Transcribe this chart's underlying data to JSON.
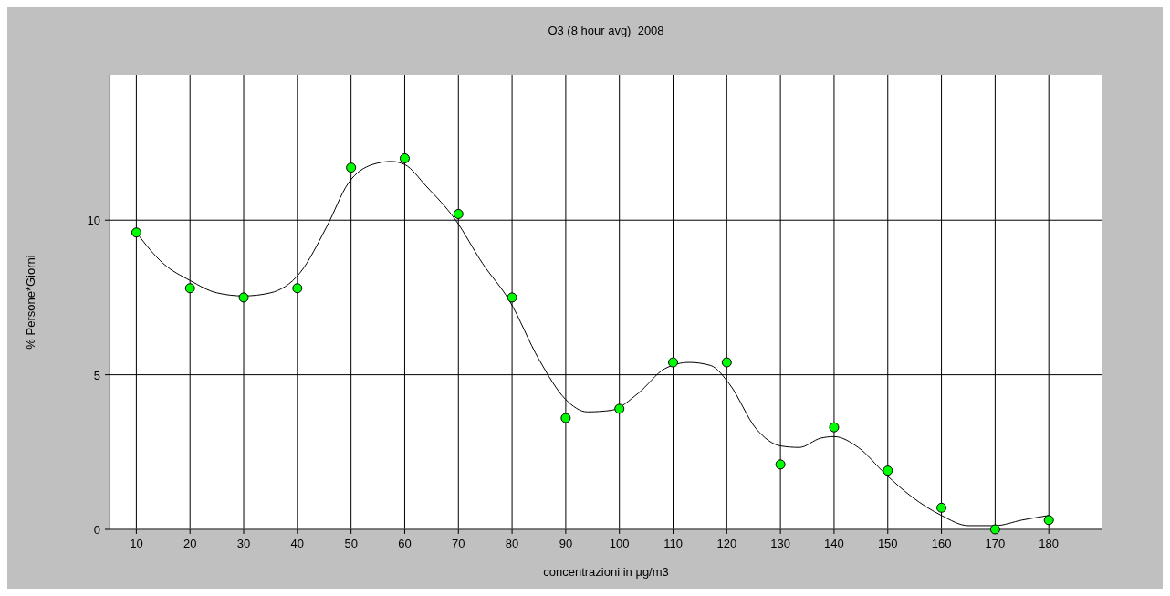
{
  "chart_data": {
    "type": "scatter",
    "title": "O3 (8 hour avg)  2008",
    "xlabel": "concentrazioni in µg/m3",
    "ylabel": "% Persone*Giorni",
    "xlim": [
      5,
      190
    ],
    "xticks": [
      10,
      20,
      30,
      40,
      50,
      60,
      70,
      80,
      90,
      100,
      110,
      120,
      130,
      140,
      150,
      160,
      170,
      180
    ],
    "ylim": [
      0,
      14.7
    ],
    "yticks": [
      0,
      5,
      10
    ],
    "grid": true,
    "marker": "circle",
    "series": [
      {
        "color": "#00ff00",
        "x": [
          10,
          20,
          30,
          40,
          50,
          60,
          70,
          80,
          90,
          100,
          110,
          120,
          130,
          140,
          150,
          160,
          170,
          180
        ],
        "values": [
          9.6,
          7.8,
          7.5,
          7.8,
          11.7,
          12.0,
          10.2,
          7.5,
          3.6,
          3.9,
          5.4,
          5.4,
          2.1,
          3.3,
          1.9,
          0.7,
          0.0,
          0.3
        ]
      },
      {
        "type": "line",
        "color": "#000000",
        "marker": "none",
        "x": [
          10,
          15,
          20,
          25,
          30,
          35,
          40.5,
          45.5,
          49.5,
          54,
          57.5,
          60,
          64,
          69.5,
          74.5,
          79.5,
          85,
          90,
          94,
          98.5,
          103.5,
          108.5,
          113,
          117,
          120.5,
          125.5,
          130,
          133.5,
          137.5,
          140,
          144.5,
          149.5,
          154.5,
          160,
          165,
          170,
          175,
          180
        ],
        "values": [
          9.6,
          8.6,
          8.05,
          7.65,
          7.55,
          7.65,
          8.3,
          9.8,
          11.2,
          11.8,
          11.9,
          11.8,
          11.1,
          10,
          8.6,
          7.4,
          5.5,
          4.2,
          3.8,
          3.85,
          4.4,
          5.2,
          5.4,
          5.3,
          4.7,
          3.25,
          2.7,
          2.65,
          2.95,
          3.0,
          2.65,
          1.8,
          1.05,
          0.45,
          0.12,
          0.12,
          0.3,
          0.45
        ]
      }
    ]
  }
}
